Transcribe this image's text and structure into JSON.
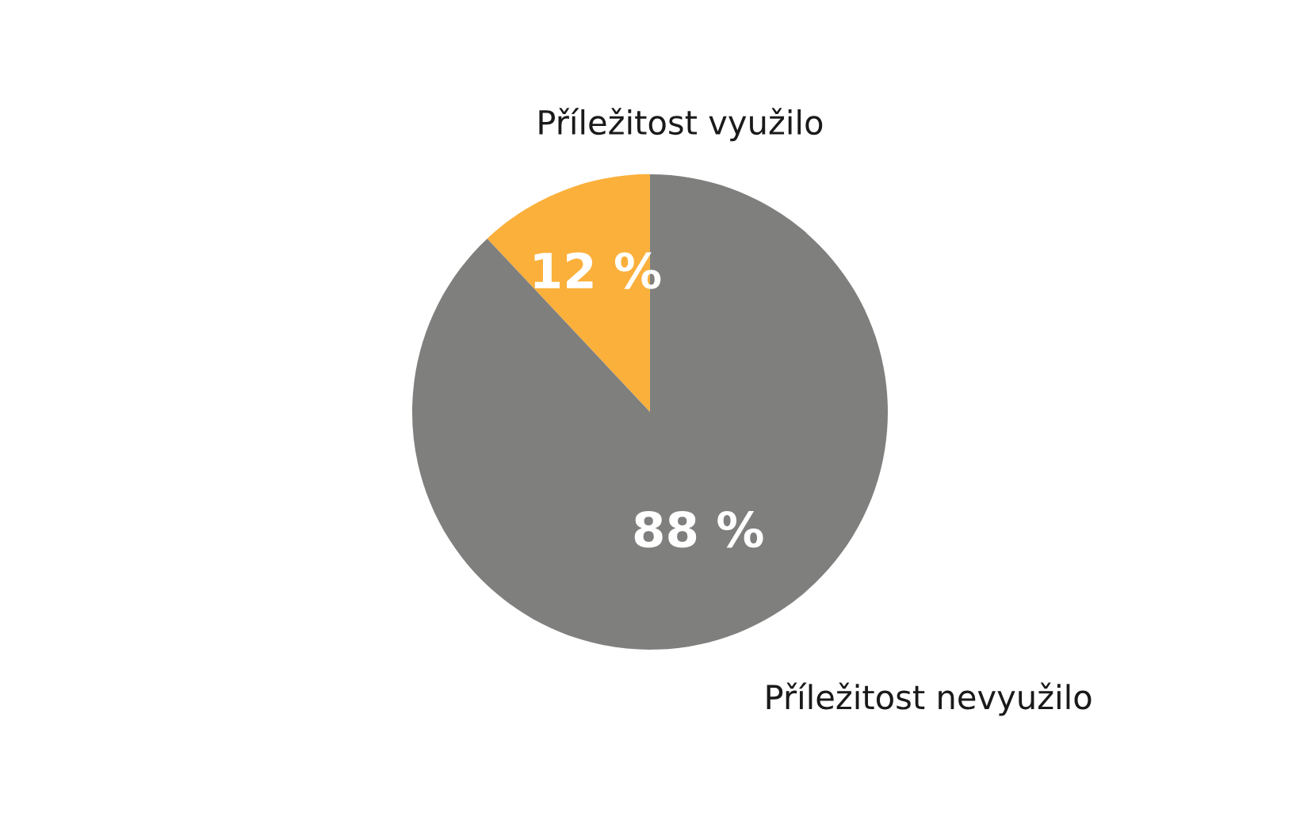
{
  "chart_data": {
    "type": "pie",
    "categories": [
      "Příležitost využilo",
      "Příležitost nevyužilo"
    ],
    "values": [
      12,
      88
    ],
    "colors": [
      "#fbb03b",
      "#7f7f7e"
    ],
    "value_labels": [
      "12 %",
      "88 %"
    ],
    "legend": false
  }
}
